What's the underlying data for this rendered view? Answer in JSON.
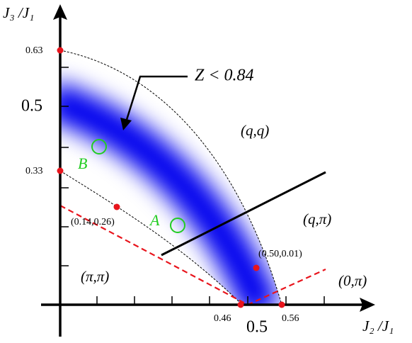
{
  "axes": {
    "y_label": "J₃ /J₁",
    "x_label": "J₂ /J₁"
  },
  "y_ticks": [
    "0.63",
    "0.5",
    "0.33"
  ],
  "x_ticks": [
    "0.46",
    "0.5",
    "0.56"
  ],
  "points": [
    "(0.14,0.26)",
    "(0.50,0.01)"
  ],
  "annotation": "Z < 0.84",
  "phases": [
    "(q,q)",
    "(q,π)",
    "(π,π)",
    "(0,π)"
  ],
  "markers": [
    "A",
    "B"
  ]
}
